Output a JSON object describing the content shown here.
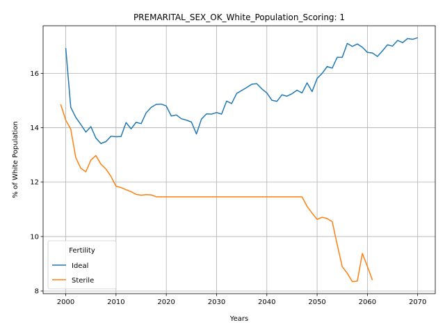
{
  "chart_data": {
    "type": "line",
    "title": "PREMARITAL_SEX_OK_White_Population_Scoring: 1",
    "xlabel": "Years",
    "ylabel": "% of White Population",
    "xlim": [
      1995.5,
      2073.5
    ],
    "ylim": [
      7.9,
      17.75
    ],
    "xticks": [
      2000,
      2010,
      2020,
      2030,
      2040,
      2050,
      2060,
      2070
    ],
    "yticks": [
      8,
      10,
      12,
      14,
      16
    ],
    "grid": true,
    "legend": {
      "title": "Fertility",
      "placement": "lower-left"
    },
    "series": [
      {
        "name": "Ideal",
        "color": "#1f77b4",
        "x": [
          2000,
          2001,
          2002,
          2003,
          2004,
          2005,
          2006,
          2007,
          2008,
          2009,
          2010,
          2011,
          2012,
          2013,
          2014,
          2015,
          2016,
          2017,
          2018,
          2019,
          2020,
          2021,
          2022,
          2023,
          2024,
          2025,
          2026,
          2027,
          2028,
          2029,
          2030,
          2031,
          2032,
          2033,
          2034,
          2035,
          2036,
          2037,
          2038,
          2039,
          2040,
          2041,
          2042,
          2043,
          2044,
          2045,
          2046,
          2047,
          2048,
          2049,
          2050,
          2051,
          2052,
          2053,
          2054,
          2055,
          2056,
          2057,
          2058,
          2059,
          2060,
          2061,
          2062,
          2063,
          2064,
          2065,
          2066,
          2067,
          2068,
          2069,
          2070
        ],
        "values": [
          16.93,
          14.75,
          14.38,
          14.12,
          13.84,
          14.04,
          13.62,
          13.42,
          13.49,
          13.69,
          13.67,
          13.68,
          14.19,
          13.96,
          14.2,
          14.15,
          14.55,
          14.75,
          14.86,
          14.87,
          14.8,
          14.43,
          14.47,
          14.33,
          14.28,
          14.21,
          13.77,
          14.32,
          14.51,
          14.5,
          14.56,
          14.5,
          14.98,
          14.89,
          15.26,
          15.37,
          15.48,
          15.6,
          15.62,
          15.43,
          15.28,
          15.01,
          14.97,
          15.21,
          15.16,
          15.25,
          15.38,
          15.28,
          15.65,
          15.33,
          15.81,
          16.0,
          16.25,
          16.19,
          16.59,
          16.59,
          17.1,
          16.99,
          17.08,
          16.96,
          16.77,
          16.75,
          16.62,
          16.83,
          17.05,
          17.0,
          17.21,
          17.13,
          17.28,
          17.25,
          17.31
        ]
      },
      {
        "name": "Sterile",
        "color": "#ff7f0e",
        "x": [
          1999,
          2000,
          2001,
          2002,
          2003,
          2004,
          2005,
          2006,
          2007,
          2008,
          2009,
          2010,
          2011,
          2012,
          2013,
          2014,
          2015,
          2016,
          2017,
          2018,
          2019,
          2020,
          2021,
          2022,
          2023,
          2024,
          2025,
          2026,
          2027,
          2028,
          2029,
          2030,
          2031,
          2032,
          2033,
          2034,
          2035,
          2036,
          2037,
          2038,
          2039,
          2040,
          2041,
          2042,
          2043,
          2044,
          2045,
          2046,
          2047,
          2048,
          2049,
          2050,
          2051,
          2052,
          2053,
          2054,
          2055,
          2056,
          2057,
          2058,
          2059,
          2060,
          2061
        ],
        "values": [
          14.86,
          14.28,
          13.95,
          12.9,
          12.51,
          12.38,
          12.81,
          12.98,
          12.66,
          12.48,
          12.21,
          11.85,
          11.8,
          11.72,
          11.65,
          11.55,
          11.52,
          11.54,
          11.53,
          11.46,
          11.46,
          11.46,
          11.46,
          11.46,
          11.46,
          11.46,
          11.46,
          11.46,
          11.46,
          11.46,
          11.46,
          11.46,
          11.46,
          11.46,
          11.46,
          11.46,
          11.46,
          11.46,
          11.46,
          11.46,
          11.46,
          11.46,
          11.46,
          11.46,
          11.46,
          11.46,
          11.46,
          11.46,
          11.46,
          11.11,
          10.86,
          10.63,
          10.71,
          10.66,
          10.55,
          9.7,
          8.89,
          8.65,
          8.34,
          8.36,
          9.38,
          8.9,
          8.4
        ]
      }
    ]
  }
}
